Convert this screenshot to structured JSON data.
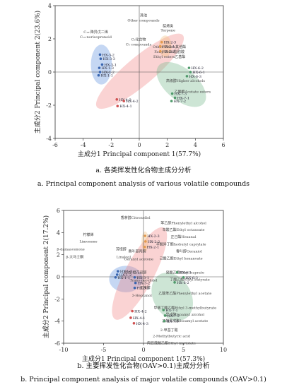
{
  "chart_data": [
    {
      "type": "scatter",
      "xlabel": "主成分1 Principal component 1(57.7%)",
      "ylabel": "主成分2 Principal component 2(23.6%)",
      "xlim": [
        -6,
        6
      ],
      "ylim": [
        -4,
        4
      ],
      "xticks": [
        "-6",
        "-4",
        "-2",
        "0",
        "2",
        "4",
        "6"
      ],
      "yticks": [
        "-4",
        "-2",
        "0",
        "2",
        "4"
      ],
      "points": [
        {
          "label": "HX-3-2",
          "x": -2.8,
          "y": 1.05,
          "color": "#3a66b0"
        },
        {
          "label": "HX-3-3",
          "x": -2.75,
          "y": 0.8,
          "color": "#3a66b0"
        },
        {
          "label": "HX-3-1",
          "x": -2.65,
          "y": 0.45,
          "color": "#3a66b0"
        },
        {
          "label": "HX-1-3",
          "x": -2.85,
          "y": 0.25,
          "color": "#3a66b0"
        },
        {
          "label": "HX-1-2",
          "x": -2.8,
          "y": 0.0,
          "color": "#3a66b0"
        },
        {
          "label": "HX-1-1",
          "x": -2.9,
          "y": -0.2,
          "color": "#3a66b0"
        },
        {
          "label": "HX-2-3",
          "x": 1.6,
          "y": 1.8,
          "color": "#e39a4f"
        },
        {
          "label": "HX-2-1",
          "x": 1.5,
          "y": 1.55,
          "color": "#e39a4f"
        },
        {
          "label": "HX-2-2",
          "x": 1.5,
          "y": 1.25,
          "color": "#e39a4f"
        },
        {
          "label": "HX-6-2",
          "x": 3.55,
          "y": 0.25,
          "color": "#4f9a6b"
        },
        {
          "label": "HX-6-1",
          "x": 3.65,
          "y": 0.0,
          "color": "#4f9a6b"
        },
        {
          "label": "HX-6-3",
          "x": 3.4,
          "y": -0.25,
          "color": "#4f9a6b"
        },
        {
          "label": "HX-7-3",
          "x": 2.35,
          "y": -1.3,
          "color": "#4f9a6b"
        },
        {
          "label": "HX-7-1",
          "x": 2.55,
          "y": -1.55,
          "color": "#4f9a6b"
        },
        {
          "label": "HX-7-2",
          "x": 2.3,
          "y": -1.75,
          "color": "#4f9a6b"
        },
        {
          "label": "HX-4-3",
          "x": -1.6,
          "y": -1.65,
          "color": "#d05050"
        },
        {
          "label": "HX-4-2",
          "x": -1.1,
          "y": -1.75,
          "color": "#d05050"
        },
        {
          "label": "HX-4-1",
          "x": -1.55,
          "y": -2.05,
          "color": "#d05050"
        }
      ],
      "annotations": [
        {
          "text": "其他",
          "x": 0.3,
          "y": 3.35
        },
        {
          "text": "Other compounds",
          "x": 0.3,
          "y": 3.05
        },
        {
          "text": "萜烯类",
          "x": 2.05,
          "y": 2.7
        },
        {
          "text": "Terpene",
          "x": 2.05,
          "y": 2.45
        },
        {
          "text": "C₁₃-降异戊二烯",
          "x": -3.1,
          "y": 2.35
        },
        {
          "text": "C₁₃-norisoprenoid",
          "x": -3.1,
          "y": 2.05
        },
        {
          "text": "C₆化合物",
          "x": -0.05,
          "y": 1.9
        },
        {
          "text": "C₆ compounds",
          "x": -0.05,
          "y": 1.6
        },
        {
          "text": "Other esters其他酯",
          "x": 2.15,
          "y": 1.45
        },
        {
          "text": "Fatty acids脂肪酸",
          "x": 2.15,
          "y": 1.15
        },
        {
          "text": "Ethyl esters乙基酯",
          "x": 2.15,
          "y": 0.85
        },
        {
          "text": "高级醇Higher alcohols",
          "x": 3.3,
          "y": -0.6
        },
        {
          "text": "乙酸酯Acetate esters",
          "x": 3.8,
          "y": -1.25
        }
      ],
      "regions": [
        "C₁₃-norisoprenoid",
        "C₆ compounds",
        "Higher alcohols",
        "Acetate esters"
      ],
      "caption_cn": "a. 各类挥发性化合物主成分分析",
      "caption_en": "a. Principal component analysis of various volatile compounds"
    },
    {
      "type": "scatter",
      "xlabel": "主成分1 Principal component 1(57.3%)",
      "ylabel": "主成分2 Principal component 2(17.2%)",
      "xlim": [
        -10,
        10
      ],
      "ylim": [
        -6,
        6
      ],
      "xticks": [
        "-10",
        "-5",
        "0",
        "5",
        "10"
      ],
      "yticks": [
        "-6",
        "-4",
        "-2",
        "0",
        "2",
        "4",
        "6"
      ],
      "points": [
        {
          "label": "HX-1-3",
          "x": -3.2,
          "y": 0.5,
          "color": "#3a66b0"
        },
        {
          "label": "HX-1-2",
          "x": -3.3,
          "y": 0.2,
          "color": "#3a66b0"
        },
        {
          "label": "HX-1-1",
          "x": -3.5,
          "y": -0.05,
          "color": "#3a66b0"
        },
        {
          "label": "HX-3-1",
          "x": -1.1,
          "y": -0.05,
          "color": "#3a66b0"
        },
        {
          "label": "HX-3-2",
          "x": -1.0,
          "y": -0.55,
          "color": "#3a66b0"
        },
        {
          "label": "HX-3-3",
          "x": -1.1,
          "y": -1.0,
          "color": "#3a66b0"
        },
        {
          "label": "HX-2-3",
          "x": 0.2,
          "y": 3.7,
          "color": "#e39a4f"
        },
        {
          "label": "HX-2-2",
          "x": 0.25,
          "y": 3.2,
          "color": "#e39a4f"
        },
        {
          "label": "HX-2-1",
          "x": 0.15,
          "y": 2.7,
          "color": "#e39a4f"
        },
        {
          "label": "HX-6-1",
          "x": 4.2,
          "y": 0.4,
          "color": "#4f9a6b"
        },
        {
          "label": "HX-6-2",
          "x": 3.9,
          "y": -0.5,
          "color": "#4f9a6b"
        },
        {
          "label": "HX-6-3",
          "x": 5.0,
          "y": -0.05,
          "color": "#4f9a6b"
        },
        {
          "label": "HX-7-1",
          "x": 2.5,
          "y": -3.0,
          "color": "#4f9a6b"
        },
        {
          "label": "HX-7-2",
          "x": 2.7,
          "y": -3.5,
          "color": "#4f9a6b"
        },
        {
          "label": "HX-7-3",
          "x": 2.6,
          "y": -4.0,
          "color": "#4f9a6b"
        },
        {
          "label": "HX-4-2",
          "x": -1.4,
          "y": -3.1,
          "color": "#d05050"
        },
        {
          "label": "HX-4-1",
          "x": -1.6,
          "y": -3.7,
          "color": "#d05050"
        },
        {
          "label": "HX-4-3",
          "x": -1.2,
          "y": -4.2,
          "color": "#d05050"
        }
      ],
      "annotations": [
        {
          "text": "香茅醇Citronellol",
          "x": -1.0,
          "y": 5.25
        },
        {
          "text": "柠檬烯",
          "x": -6.9,
          "y": 3.7
        },
        {
          "text": "Limonene",
          "x": -6.9,
          "y": 3.1
        },
        {
          "text": "β-damascenone",
          "x": -9.1,
          "y": 2.4
        },
        {
          "text": "β-大马士酮",
          "x": -8.6,
          "y": 1.7
        },
        {
          "text": "芳樟醇",
          "x": -2.8,
          "y": 2.4
        },
        {
          "text": "Linalool",
          "x": -2.5,
          "y": 1.7
        },
        {
          "text": "香叶基丙酮",
          "x": -0.8,
          "y": 2.2
        },
        {
          "text": "Geranyl acetone",
          "x": -0.6,
          "y": 1.5
        },
        {
          "text": "反式-橙花叔醇",
          "x": -1.0,
          "y": 0.3
        },
        {
          "text": "Trans-nerolidol",
          "x": 0.0,
          "y": -0.4
        },
        {
          "text": "正庚醇",
          "x": 0.2,
          "y": -1.1
        },
        {
          "text": "3-Heptanol",
          "x": -0.2,
          "y": -1.8
        },
        {
          "text": "苯乙醇Phenylethyl alcohol",
          "x": 5.0,
          "y": 4.75
        },
        {
          "text": "辛酸乙酯Ethyl octanoate",
          "x": 5.0,
          "y": 4.15
        },
        {
          "text": "正己酯Hexanal",
          "x": 5.0,
          "y": 3.5
        },
        {
          "text": "辛酸异丁酯Isobutyl caprylate",
          "x": 4.7,
          "y": 2.85
        },
        {
          "text": "香叶醇Geraniol",
          "x": 5.7,
          "y": 2.2
        },
        {
          "text": "己酸乙酯Ethyl hexanoate",
          "x": 4.7,
          "y": 1.55
        },
        {
          "text": "癸酸乙酯Ethyl caprate",
          "x": 5.2,
          "y": 0.3
        },
        {
          "text": "丁酸乙酯Ethyl butyrate",
          "x": 5.8,
          "y": -0.35
        },
        {
          "text": "乙酸苯乙酯Phenylethyl acetate",
          "x": 5.2,
          "y": -1.6
        },
        {
          "text": "甲基丁酸乙酯Ethyl 3-methylbutyrate",
          "x": 5.2,
          "y": -2.9
        },
        {
          "text": "异戊醇Isoamyl alcohol",
          "x": 5.2,
          "y": -3.5
        },
        {
          "text": "乙酸异戊酯Isoamyl acetate",
          "x": 5.2,
          "y": -4.1
        },
        {
          "text": "2-甲基丁酸",
          "x": 3.2,
          "y": -4.9
        },
        {
          "text": "2-Methylbutyric acid",
          "x": 3.5,
          "y": -5.45
        },
        {
          "text": "肉豆蔻酸乙酯Ethyl myristate",
          "x": 3.5,
          "y": -6.1
        }
      ],
      "caption_cn": "b. 主要挥发性化合物(OAV>0.1)主成分分析",
      "caption_en": "b. Principal component analysis of major volatile compounds (OAV>0.1)"
    }
  ]
}
